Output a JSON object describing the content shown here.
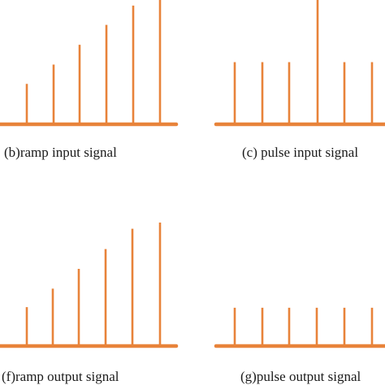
{
  "accent_color": "#e8833a",
  "panels": [
    {
      "id": "b",
      "caption": "(b)ramp input signal",
      "relative_heights": [
        0.325,
        0.48,
        0.64,
        0.8,
        0.955,
        1.0
      ]
    },
    {
      "id": "c",
      "caption": "(c) pulse input signal",
      "relative_heights": [
        0.5,
        0.5,
        0.5,
        1.0,
        0.5,
        0.5
      ]
    },
    {
      "id": "f",
      "caption": "(f)ramp output signal",
      "relative_heights": [
        0.315,
        0.465,
        0.625,
        0.785,
        0.95,
        1.0
      ]
    },
    {
      "id": "g",
      "caption": "(g)pulse output signal",
      "relative_heights": [
        0.31,
        0.31,
        0.31,
        0.31,
        0.31,
        0.31
      ]
    }
  ]
}
